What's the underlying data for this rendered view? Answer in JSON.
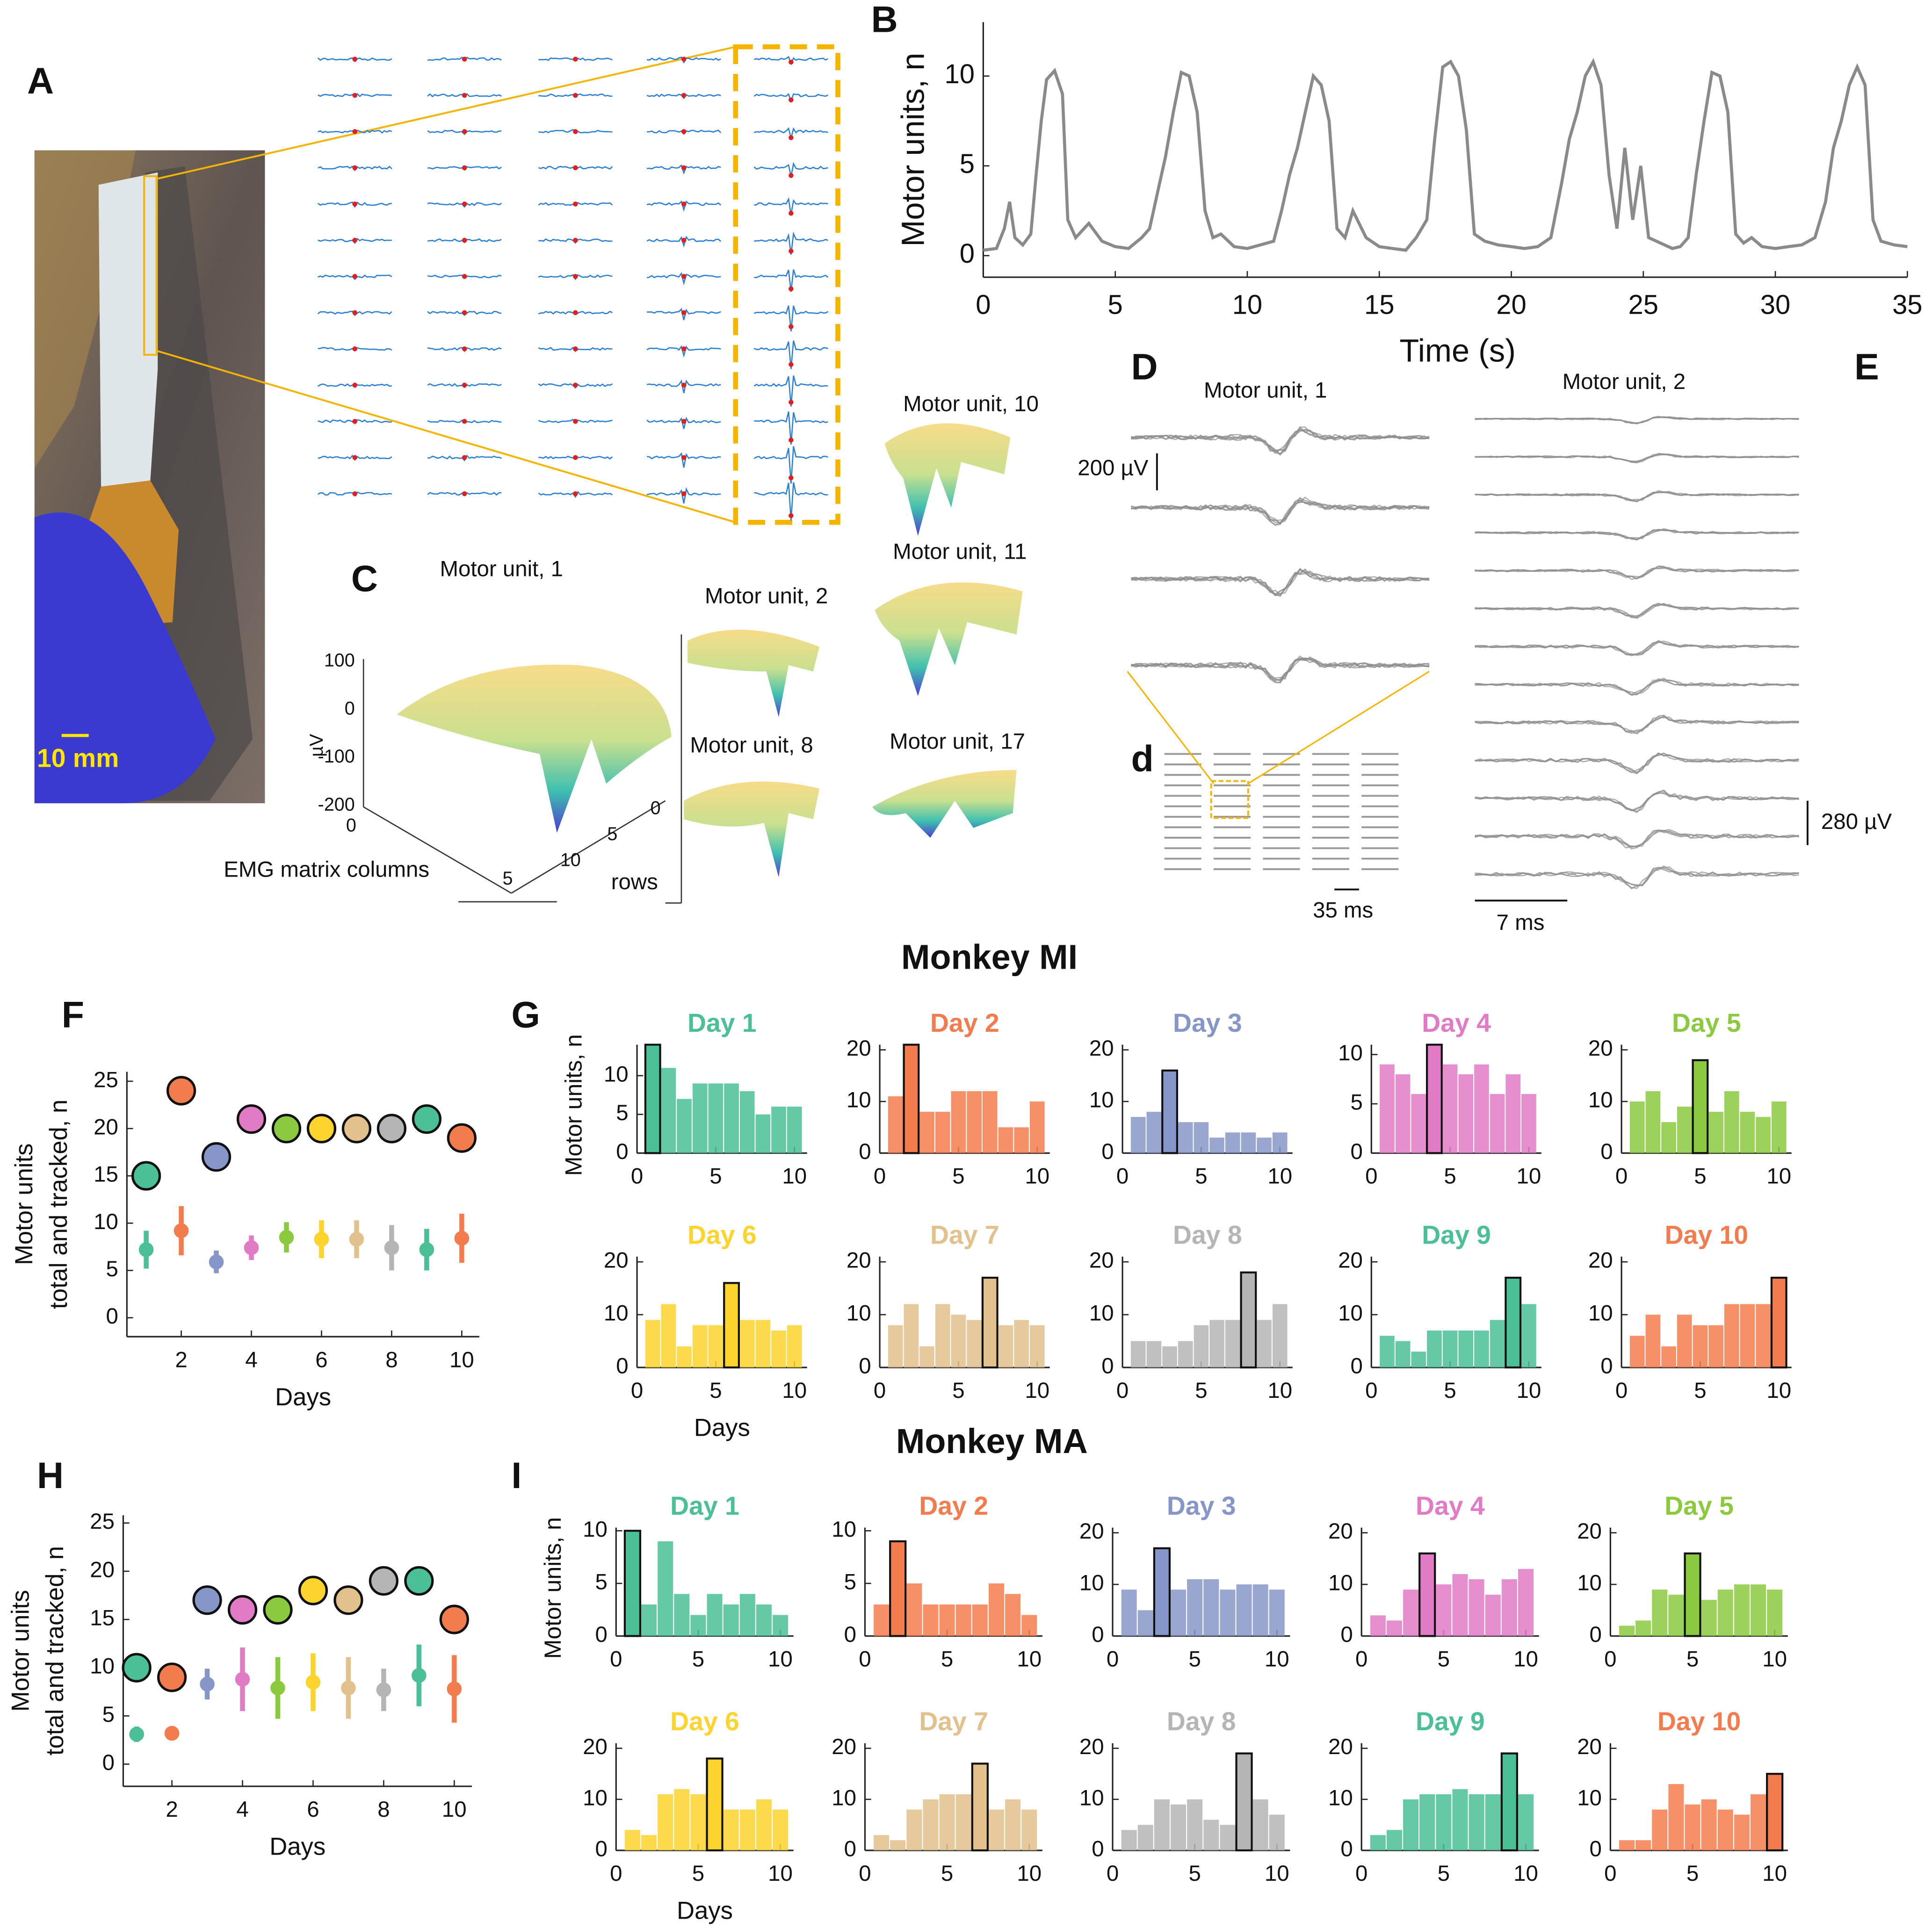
{
  "panel_letters": [
    "A",
    "B",
    "C",
    "D",
    "E",
    "F",
    "G",
    "H",
    "I",
    "d"
  ],
  "sections": [
    "Monkey MI",
    "Monkey MA"
  ],
  "panel_a": {
    "scale": "10 mm"
  },
  "panel_c": {
    "surfaces": [
      "Motor unit, 1",
      "Motor unit, 2",
      "Motor unit, 8",
      "Motor unit, 10",
      "Motor unit, 11",
      "Motor unit, 17"
    ],
    "z_ticks": [
      "100",
      "0",
      "-100",
      "-200"
    ],
    "z_label": "µV",
    "col_ticks": [
      "0",
      "5"
    ],
    "row_ticks": [
      "0",
      "5",
      "10"
    ],
    "col_label": "EMG matrix columns",
    "row_label": "rows"
  },
  "panel_d": {
    "title": "Motor unit, 1",
    "v_scale": "200 µV",
    "t_scale": "35 ms"
  },
  "panel_e": {
    "title": "Motor unit, 2",
    "v_scale": "280 µV",
    "t_scale": "7 ms"
  },
  "chart_data": [
    {
      "type": "line",
      "xlabel": "Time (s)",
      "ylabel": "Motor units, n",
      "color": "#8a8a8a",
      "xlim": [
        0,
        35
      ],
      "ylim": [
        -1.2,
        13
      ],
      "xticks": [
        0,
        5,
        10,
        15,
        20,
        25,
        30,
        35
      ],
      "yticks": [
        0,
        5,
        10
      ],
      "x": [
        0,
        0.5,
        0.8,
        1.0,
        1.2,
        1.5,
        1.8,
        2.0,
        2.2,
        2.4,
        2.7,
        3.0,
        3.2,
        3.5,
        4.0,
        4.5,
        5.0,
        5.5,
        6.0,
        6.3,
        6.6,
        6.9,
        7.2,
        7.5,
        7.8,
        8.1,
        8.4,
        8.7,
        9.0,
        9.5,
        10.0,
        10.5,
        11.0,
        11.3,
        11.6,
        11.9,
        12.2,
        12.5,
        12.8,
        13.1,
        13.4,
        13.7,
        14.0,
        14.5,
        15.0,
        15.5,
        16.0,
        16.4,
        16.8,
        17.1,
        17.4,
        17.7,
        18.0,
        18.3,
        18.6,
        19.0,
        19.5,
        20.0,
        20.5,
        21.0,
        21.5,
        21.9,
        22.2,
        22.5,
        22.8,
        23.1,
        23.4,
        23.7,
        24.0,
        24.3,
        24.6,
        24.9,
        25.2,
        25.5,
        25.8,
        26.1,
        26.4,
        26.7,
        27.0,
        27.3,
        27.6,
        27.9,
        28.2,
        28.5,
        28.8,
        29.1,
        29.5,
        30.0,
        30.5,
        31.0,
        31.5,
        31.9,
        32.2,
        32.5,
        32.8,
        33.1,
        33.4,
        33.7,
        34.0,
        34.5,
        35.0
      ],
      "y": [
        0.3,
        0.4,
        1.5,
        3.0,
        1.0,
        0.6,
        1.2,
        4.5,
        7.5,
        9.8,
        10.3,
        9.0,
        2.0,
        1.0,
        1.8,
        0.8,
        0.5,
        0.4,
        1.0,
        1.5,
        3.5,
        5.5,
        8.0,
        10.2,
        10.0,
        8.0,
        2.5,
        1.0,
        1.2,
        0.5,
        0.4,
        0.6,
        0.8,
        2.5,
        4.5,
        6.0,
        8.0,
        10.0,
        9.5,
        7.5,
        1.5,
        1.0,
        2.5,
        1.0,
        0.5,
        0.4,
        0.3,
        1.0,
        2.0,
        6.5,
        10.5,
        10.8,
        10.0,
        7.0,
        1.2,
        0.8,
        0.6,
        0.5,
        0.4,
        0.5,
        1.0,
        4.0,
        6.5,
        8.0,
        10.0,
        10.8,
        9.5,
        4.5,
        1.5,
        6.0,
        2.0,
        5.0,
        1.0,
        0.8,
        0.6,
        0.4,
        0.5,
        1.0,
        4.5,
        7.5,
        10.2,
        10.0,
        8.0,
        1.2,
        0.7,
        1.0,
        0.5,
        0.4,
        0.5,
        0.6,
        1.0,
        3.0,
        6.0,
        7.5,
        9.5,
        10.5,
        9.5,
        2.0,
        0.8,
        0.6,
        0.5
      ]
    },
    {
      "type": "dots",
      "xlabel": "Days",
      "ylabel": [
        "Motor units",
        "total and tracked, n"
      ],
      "xlim": [
        0.45,
        10.5
      ],
      "ylim": [
        -2,
        26
      ],
      "xticks": [
        2,
        4,
        6,
        8,
        10
      ],
      "yticks": [
        0,
        5,
        10,
        15,
        20,
        25
      ],
      "x": [
        1,
        2,
        3,
        4,
        5,
        6,
        7,
        8,
        9,
        10
      ],
      "total": [
        15,
        24,
        17,
        21,
        20,
        20,
        20,
        20,
        21,
        19
      ],
      "tracked": [
        7.2,
        9.2,
        5.9,
        7.4,
        8.5,
        8.3,
        8.3,
        7.4,
        7.2,
        8.4
      ],
      "tracked_err": [
        2,
        2.6,
        1.2,
        1.3,
        1.6,
        2,
        2,
        2.4,
        2.2,
        2.6
      ],
      "colors": [
        "#4bbf96",
        "#f37c4f",
        "#8796c8",
        "#e27bc6",
        "#8bc93f",
        "#fcd42d",
        "#e2c18c",
        "#b5b5b5",
        "#4bbf96",
        "#f37c4f"
      ]
    },
    {
      "type": "dots",
      "xlabel": "Days",
      "ylabel": [
        "Motor units",
        "total and tracked, n"
      ],
      "xlim": [
        0.62,
        10.5
      ],
      "ylim": [
        -2.3,
        25.8
      ],
      "xticks": [
        2,
        4,
        6,
        8,
        10
      ],
      "yticks": [
        0,
        5,
        10,
        15,
        20,
        25
      ],
      "x": [
        1,
        2,
        3,
        4,
        5,
        6,
        7,
        8,
        9,
        10
      ],
      "total": [
        10,
        9,
        17,
        16,
        16,
        18,
        17,
        19,
        19,
        15
      ],
      "tracked": [
        3.1,
        3.2,
        8.3,
        8.8,
        7.9,
        8.5,
        7.9,
        7.7,
        9.2,
        7.8
      ],
      "tracked_err": [
        0.8,
        0.6,
        1.6,
        3.3,
        3.2,
        3,
        3.2,
        2.2,
        3.2,
        3.5
      ],
      "colors": [
        "#4bbf96",
        "#f37c4f",
        "#8796c8",
        "#e27bc6",
        "#8bc93f",
        "#fcd42d",
        "#e2c18c",
        "#b5b5b5",
        "#4bbf96",
        "#f37c4f"
      ]
    },
    {
      "type": "bar",
      "title": "Day  1",
      "ylabel": "Motor units, n",
      "color": "#4bbf96",
      "outlined_x": 1,
      "x": [
        1,
        2,
        3,
        4,
        5,
        6,
        7,
        8,
        9,
        10
      ],
      "values": [
        14,
        11,
        7,
        9,
        9,
        9,
        8,
        5,
        6,
        6
      ],
      "xlim": [
        0,
        10.8
      ],
      "ylim": [
        0,
        14
      ],
      "xticks": [
        0,
        5,
        10
      ],
      "yticks": [
        0,
        5,
        10
      ]
    },
    {
      "type": "bar",
      "title": "Day  2",
      "color": "#f37c4f",
      "outlined_x": 2,
      "x": [
        1,
        2,
        3,
        4,
        5,
        6,
        7,
        8,
        9,
        10
      ],
      "values": [
        11,
        21,
        8,
        8,
        12,
        12,
        12,
        5,
        5,
        10
      ],
      "xlim": [
        0,
        10.8
      ],
      "ylim": [
        0,
        21
      ],
      "xticks": [
        0,
        5,
        10
      ],
      "yticks": [
        0,
        10,
        20
      ]
    },
    {
      "type": "bar",
      "title": "Day  3",
      "color": "#8796c8",
      "outlined_x": 3,
      "x": [
        1,
        2,
        3,
        4,
        5,
        6,
        7,
        8,
        9,
        10
      ],
      "values": [
        7,
        8,
        16,
        6,
        6,
        3,
        4,
        4,
        3,
        4
      ],
      "xlim": [
        0,
        10.8
      ],
      "ylim": [
        0,
        21
      ],
      "xticks": [
        0,
        5,
        10
      ],
      "yticks": [
        0,
        10,
        20
      ]
    },
    {
      "type": "bar",
      "title": "Day  4",
      "color": "#e27bc6",
      "outlined_x": 4,
      "x": [
        1,
        2,
        3,
        4,
        5,
        6,
        7,
        8,
        9,
        10
      ],
      "values": [
        9,
        8,
        6,
        11,
        9,
        8,
        9,
        6,
        8,
        6
      ],
      "xlim": [
        0,
        10.8
      ],
      "ylim": [
        0,
        11
      ],
      "xticks": [
        0,
        5,
        10
      ],
      "yticks": [
        0,
        5,
        10
      ]
    },
    {
      "type": "bar",
      "title": "Day  5",
      "color": "#8bc93f",
      "outlined_x": 5,
      "x": [
        1,
        2,
        3,
        4,
        5,
        6,
        7,
        8,
        9,
        10
      ],
      "values": [
        10,
        12,
        6,
        9,
        18,
        8,
        12,
        8,
        7,
        10
      ],
      "xlim": [
        0,
        10.8
      ],
      "ylim": [
        0,
        21
      ],
      "xticks": [
        0,
        5,
        10
      ],
      "yticks": [
        0,
        10,
        20
      ]
    },
    {
      "type": "bar",
      "title": "Day  6",
      "xlabel": "Days",
      "color": "#fcd42d",
      "outlined_x": 6,
      "x": [
        1,
        2,
        3,
        4,
        5,
        6,
        7,
        8,
        9,
        10
      ],
      "values": [
        9,
        12,
        4,
        8,
        8,
        16,
        9,
        9,
        7,
        8
      ],
      "xlim": [
        0,
        10.8
      ],
      "ylim": [
        0,
        21
      ],
      "xticks": [
        0,
        5,
        10
      ],
      "yticks": [
        0,
        10,
        20
      ]
    },
    {
      "type": "bar",
      "title": "Day  7",
      "color": "#e2c18c",
      "outlined_x": 7,
      "x": [
        1,
        2,
        3,
        4,
        5,
        6,
        7,
        8,
        9,
        10
      ],
      "values": [
        8,
        12,
        4,
        12,
        10,
        9,
        17,
        8,
        9,
        8
      ],
      "xlim": [
        0,
        10.8
      ],
      "ylim": [
        0,
        21
      ],
      "xticks": [
        0,
        5,
        10
      ],
      "yticks": [
        0,
        10,
        20
      ]
    },
    {
      "type": "bar",
      "title": "Day  8",
      "color": "#b5b5b5",
      "outlined_x": 8,
      "x": [
        1,
        2,
        3,
        4,
        5,
        6,
        7,
        8,
        9,
        10
      ],
      "values": [
        5,
        5,
        4,
        5,
        8,
        9,
        9,
        18,
        9,
        12
      ],
      "xlim": [
        0,
        10.8
      ],
      "ylim": [
        0,
        21
      ],
      "xticks": [
        0,
        5,
        10
      ],
      "yticks": [
        0,
        10,
        20
      ]
    },
    {
      "type": "bar",
      "title": "Day  9",
      "color": "#4bbf96",
      "outlined_x": 9,
      "x": [
        1,
        2,
        3,
        4,
        5,
        6,
        7,
        8,
        9,
        10
      ],
      "values": [
        6,
        5,
        3,
        7,
        7,
        7,
        7,
        9,
        17,
        12
      ],
      "xlim": [
        0,
        10.8
      ],
      "ylim": [
        0,
        21
      ],
      "xticks": [
        0,
        5,
        10
      ],
      "yticks": [
        0,
        10,
        20
      ]
    },
    {
      "type": "bar",
      "title": "Day  10",
      "color": "#f37c4f",
      "outlined_x": 10,
      "x": [
        1,
        2,
        3,
        4,
        5,
        6,
        7,
        8,
        9,
        10
      ],
      "values": [
        6,
        10,
        4,
        10,
        8,
        8,
        12,
        12,
        12,
        17
      ],
      "xlim": [
        0,
        10.8
      ],
      "ylim": [
        0,
        21
      ],
      "xticks": [
        0,
        5,
        10
      ],
      "yticks": [
        0,
        10,
        20
      ]
    },
    {
      "type": "bar",
      "title": "Day  1",
      "ylabel": "Motor units, n",
      "color": "#4bbf96",
      "outlined_x": 1,
      "x": [
        1,
        2,
        3,
        4,
        5,
        6,
        7,
        8,
        9,
        10
      ],
      "values": [
        10,
        3,
        9,
        4,
        2,
        4,
        3,
        4,
        3,
        2
      ],
      "xlim": [
        0,
        10.8
      ],
      "ylim": [
        0,
        10.3
      ],
      "xticks": [
        0,
        5,
        10
      ],
      "yticks": [
        0,
        5,
        10
      ]
    },
    {
      "type": "bar",
      "title": "Day  2",
      "color": "#f37c4f",
      "outlined_x": 2,
      "x": [
        1,
        2,
        3,
        4,
        5,
        6,
        7,
        8,
        9,
        10
      ],
      "values": [
        3,
        9,
        5,
        3,
        3,
        3,
        3,
        5,
        4,
        2
      ],
      "xlim": [
        0,
        10.8
      ],
      "ylim": [
        0,
        10.3
      ],
      "xticks": [
        0,
        5,
        10
      ],
      "yticks": [
        0,
        5,
        10
      ]
    },
    {
      "type": "bar",
      "title": "Day  3",
      "color": "#8796c8",
      "outlined_x": 3,
      "x": [
        1,
        2,
        3,
        4,
        5,
        6,
        7,
        8,
        9,
        10
      ],
      "values": [
        9,
        5,
        17,
        9,
        11,
        11,
        9,
        10,
        10,
        9
      ],
      "xlim": [
        0,
        10.8
      ],
      "ylim": [
        0,
        21
      ],
      "xticks": [
        0,
        5,
        10
      ],
      "yticks": [
        0,
        10,
        20
      ]
    },
    {
      "type": "bar",
      "title": "Day  4",
      "color": "#e27bc6",
      "outlined_x": 4,
      "x": [
        1,
        2,
        3,
        4,
        5,
        6,
        7,
        8,
        9,
        10
      ],
      "values": [
        4,
        3,
        9,
        16,
        10,
        12,
        11,
        8,
        11,
        13
      ],
      "xlim": [
        0,
        10.8
      ],
      "ylim": [
        0,
        21
      ],
      "xticks": [
        0,
        5,
        10
      ],
      "yticks": [
        0,
        10,
        20
      ]
    },
    {
      "type": "bar",
      "title": "Day  5",
      "color": "#8bc93f",
      "outlined_x": 5,
      "x": [
        1,
        2,
        3,
        4,
        5,
        6,
        7,
        8,
        9,
        10
      ],
      "values": [
        2,
        3,
        9,
        8,
        16,
        7,
        9,
        10,
        10,
        9
      ],
      "xlim": [
        0,
        10.8
      ],
      "ylim": [
        0,
        21
      ],
      "xticks": [
        0,
        5,
        10
      ],
      "yticks": [
        0,
        10,
        20
      ]
    },
    {
      "type": "bar",
      "title": "Day  6",
      "xlabel": "Days",
      "color": "#fcd42d",
      "outlined_x": 6,
      "x": [
        1,
        2,
        3,
        4,
        5,
        6,
        7,
        8,
        9,
        10
      ],
      "values": [
        4,
        3,
        11,
        12,
        11,
        18,
        8,
        8,
        10,
        8
      ],
      "xlim": [
        0,
        10.8
      ],
      "ylim": [
        0,
        21
      ],
      "xticks": [
        0,
        5,
        10
      ],
      "yticks": [
        0,
        10,
        20
      ]
    },
    {
      "type": "bar",
      "title": "Day  7",
      "color": "#e2c18c",
      "outlined_x": 7,
      "x": [
        1,
        2,
        3,
        4,
        5,
        6,
        7,
        8,
        9,
        10
      ],
      "values": [
        3,
        2,
        8,
        10,
        11,
        11,
        17,
        8,
        10,
        8
      ],
      "xlim": [
        0,
        10.8
      ],
      "ylim": [
        0,
        21
      ],
      "xticks": [
        0,
        5,
        10
      ],
      "yticks": [
        0,
        10,
        20
      ]
    },
    {
      "type": "bar",
      "title": "Day  8",
      "color": "#b5b5b5",
      "outlined_x": 8,
      "x": [
        1,
        2,
        3,
        4,
        5,
        6,
        7,
        8,
        9,
        10
      ],
      "values": [
        4,
        5,
        10,
        9,
        10,
        6,
        5,
        19,
        10,
        7
      ],
      "xlim": [
        0,
        10.8
      ],
      "ylim": [
        0,
        21
      ],
      "xticks": [
        0,
        5,
        10
      ],
      "yticks": [
        0,
        10,
        20
      ]
    },
    {
      "type": "bar",
      "title": "Day  9",
      "color": "#4bbf96",
      "outlined_x": 9,
      "x": [
        1,
        2,
        3,
        4,
        5,
        6,
        7,
        8,
        9,
        10
      ],
      "values": [
        3,
        4,
        10,
        11,
        11,
        12,
        11,
        11,
        19,
        11
      ],
      "xlim": [
        0,
        10.8
      ],
      "ylim": [
        0,
        21
      ],
      "xticks": [
        0,
        5,
        10
      ],
      "yticks": [
        0,
        10,
        20
      ]
    },
    {
      "type": "bar",
      "title": "Day  10",
      "color": "#f37c4f",
      "outlined_x": 10,
      "x": [
        1,
        2,
        3,
        4,
        5,
        6,
        7,
        8,
        9,
        10
      ],
      "values": [
        2,
        2,
        8,
        13,
        9,
        10,
        8,
        7,
        11,
        15
      ],
      "xlim": [
        0,
        10.8
      ],
      "ylim": [
        0,
        21
      ],
      "xticks": [
        0,
        5,
        10
      ],
      "yticks": [
        0,
        10,
        20
      ]
    }
  ]
}
